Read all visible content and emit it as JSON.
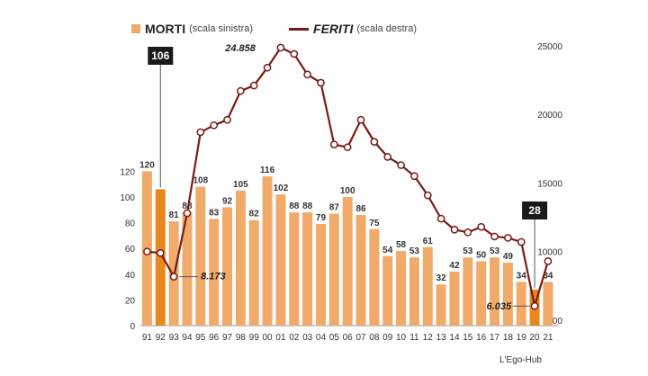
{
  "legend": {
    "morti_label": "MORTI",
    "morti_note": "(scala sinistra)",
    "feriti_label": "FERITI",
    "feriti_note": "(scala destra)"
  },
  "source": "L'Ego-Hub",
  "colors": {
    "bar": "#f0aa6a",
    "bar_highlight": "#e8891f",
    "line": "#7a1a14",
    "callout_bg": "#1a1a1a"
  },
  "chart_data": {
    "type": "bar",
    "categories": [
      "91",
      "92",
      "93",
      "94",
      "95",
      "96",
      "97",
      "98",
      "99",
      "00",
      "01",
      "02",
      "03",
      "04",
      "05",
      "06",
      "07",
      "08",
      "09",
      "10",
      "11",
      "12",
      "13",
      "14",
      "15",
      "16",
      "17",
      "18",
      "19",
      "20",
      "21"
    ],
    "series": [
      {
        "name": "MORTI",
        "axis": "left",
        "type": "bar",
        "values": [
          120,
          106,
          81,
          88,
          108,
          83,
          92,
          105,
          82,
          116,
          102,
          88,
          88,
          79,
          87,
          100,
          86,
          75,
          54,
          58,
          53,
          61,
          32,
          42,
          53,
          50,
          53,
          49,
          34,
          28,
          34
        ],
        "highlight_indices": [
          1,
          29
        ]
      },
      {
        "name": "FERITI",
        "axis": "right",
        "type": "line",
        "values": [
          10000,
          9900,
          8173,
          12800,
          18700,
          19200,
          19600,
          21700,
          22100,
          23400,
          24858,
          24400,
          22900,
          22300,
          17800,
          17600,
          19600,
          18000,
          16900,
          16300,
          15500,
          14100,
          12400,
          11600,
          11400,
          11800,
          11100,
          11000,
          10700,
          6035,
          9300
        ]
      }
    ],
    "y_left": {
      "min": 0,
      "max": 130,
      "ticks": [
        "0",
        "20",
        "40",
        "60",
        "80",
        "100",
        "120"
      ]
    },
    "y_right": {
      "min": 5000,
      "max": 27000,
      "ticks": [
        "5000",
        "10000",
        "15000",
        "20000",
        "25000"
      ]
    },
    "bar_labels": [
      "120",
      "",
      "81",
      "88",
      "108",
      "83",
      "92",
      "105",
      "82",
      "116",
      "102",
      "88",
      "88",
      "79",
      "87",
      "100",
      "86",
      "75",
      "54",
      "58",
      "53",
      "61",
      "32",
      "42",
      "53",
      "50",
      "53",
      "49",
      "34",
      "",
      "34"
    ],
    "callouts": {
      "morti_92": "106",
      "morti_20": "28",
      "feriti_max": "24.858",
      "feriti_93": "8.173",
      "feriti_20": "6.035"
    }
  }
}
